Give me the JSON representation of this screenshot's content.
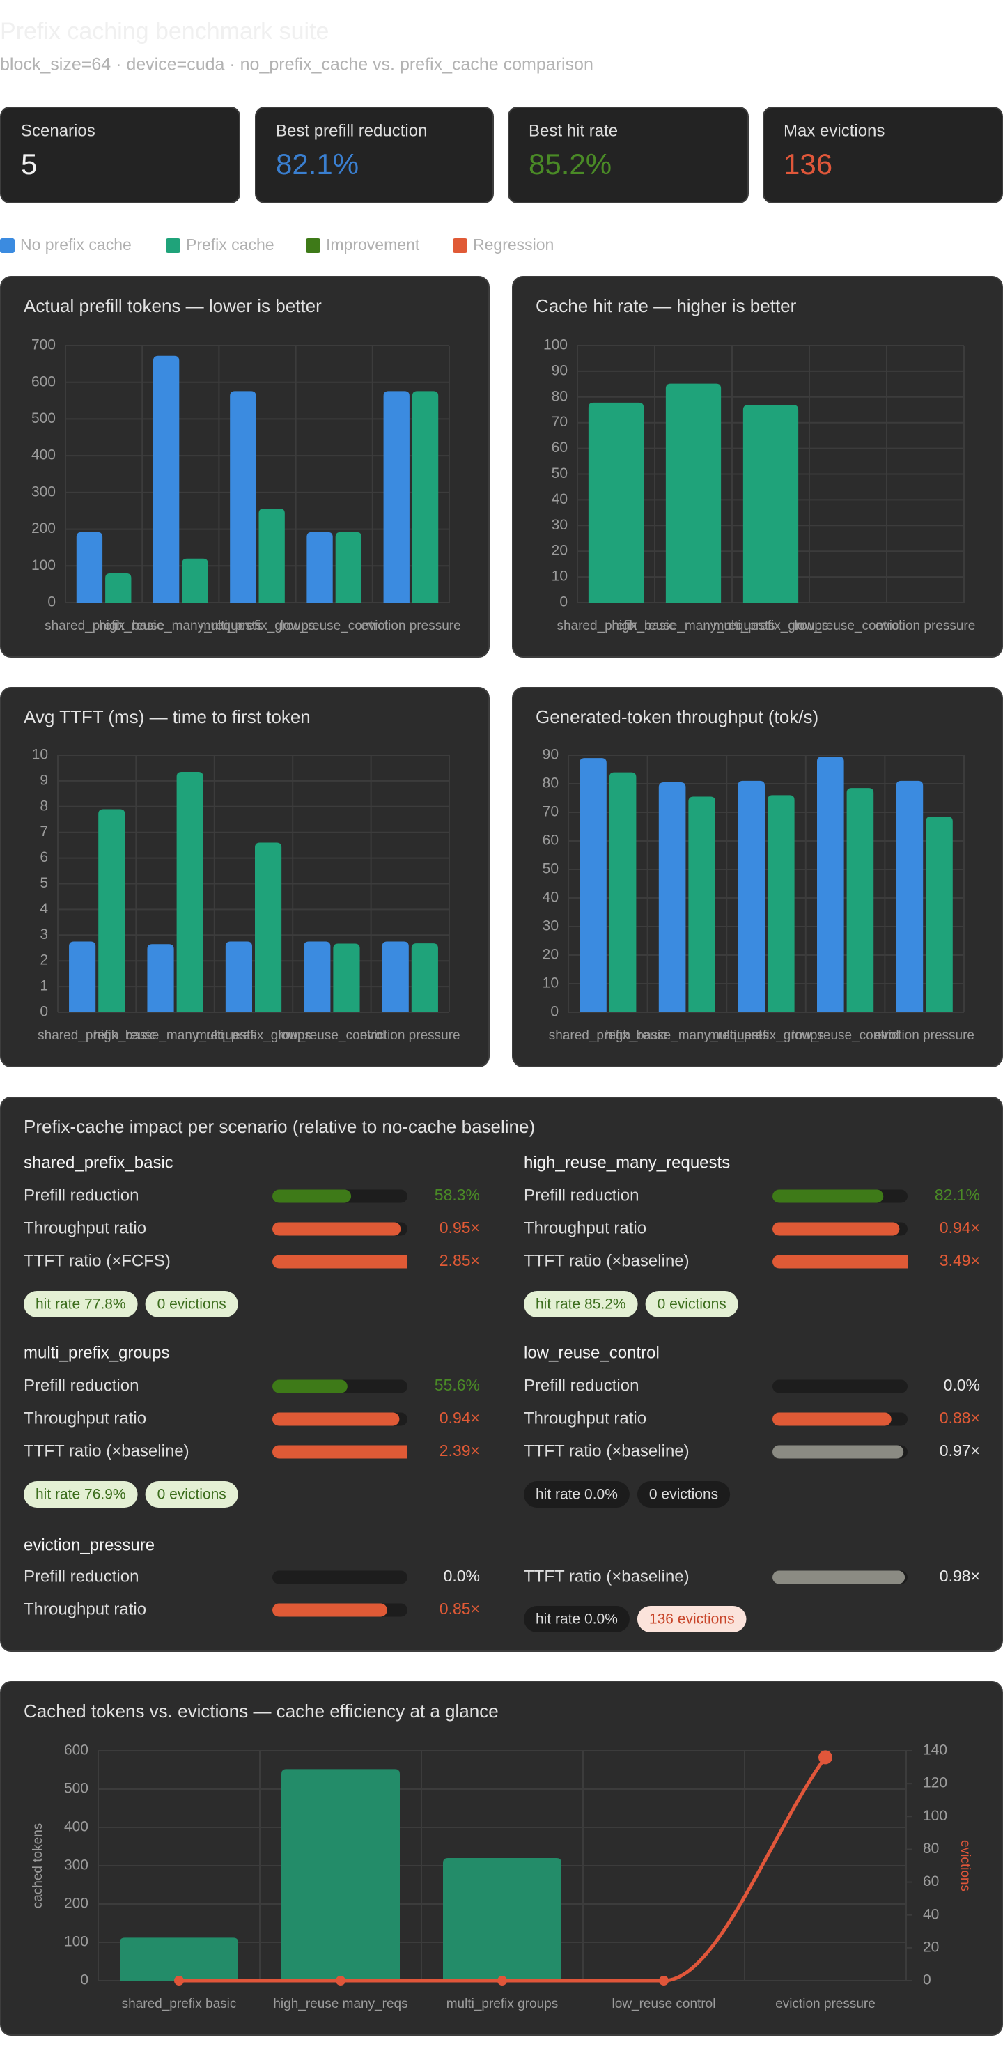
{
  "header": {
    "title": "Prefix caching benchmark suite",
    "subtitle": "block_size=64 · device=cuda · no_prefix_cache vs. prefix_cache comparison"
  },
  "kpis": [
    {
      "label": "Scenarios",
      "value": "5",
      "color": "#f2f2f2"
    },
    {
      "label": "Best prefill reduction",
      "value": "82.1%",
      "color": "#3a7fd0"
    },
    {
      "label": "Best hit rate",
      "value": "85.2%",
      "color": "#4a8a26"
    },
    {
      "label": "Max evictions",
      "value": "136",
      "color": "#e0573a"
    }
  ],
  "legend": [
    {
      "name": "No prefix cache",
      "color": "#3b8be0"
    },
    {
      "name": "Prefix cache",
      "color": "#1fa37a"
    },
    {
      "name": "Improvement",
      "color": "#3e7a18"
    },
    {
      "name": "Regression",
      "color": "#e05a36"
    }
  ],
  "chart_data": [
    {
      "type": "bar",
      "title": "Actual prefill tokens — lower is better",
      "categories": [
        "shared_prefix_basic",
        "high_reuse_many_requests",
        "multi_prefix_groups",
        "low_reuse_control",
        "eviction pressure"
      ],
      "series": [
        {
          "color": "#3b8be0",
          "values": [
            192,
            672,
            576,
            192,
            576
          ]
        },
        {
          "color": "#1fa37a",
          "values": [
            80,
            120,
            256,
            192,
            576
          ]
        }
      ],
      "ylim": [
        0,
        700
      ],
      "yticks": [
        0,
        100,
        200,
        300,
        400,
        500,
        600,
        700
      ],
      "grid": true
    },
    {
      "type": "bar",
      "title": "Cache hit rate — higher is better",
      "categories": [
        "shared_prefix_basic",
        "high_reuse_many_requests",
        "multi_prefix_groups",
        "low_reuse_control",
        "eviction pressure"
      ],
      "series": [
        {
          "color": "#1fa37a",
          "values": [
            77.8,
            85.2,
            76.9,
            0,
            0
          ]
        }
      ],
      "ylim": [
        0,
        100
      ],
      "yticks": [
        0,
        10,
        20,
        30,
        40,
        50,
        60,
        70,
        80,
        90,
        100
      ],
      "grid": true
    },
    {
      "type": "bar",
      "title": "Avg TTFT (ms) — time to first token",
      "categories": [
        "shared_prefix_basic",
        "high_reuse_many_requests",
        "multi_prefix_groups",
        "low_reuse_control",
        "eviction pressure"
      ],
      "series": [
        {
          "color": "#3b8be0",
          "values": [
            2.75,
            2.65,
            2.75,
            2.75,
            2.75
          ]
        },
        {
          "color": "#1fa37a",
          "values": [
            7.9,
            9.35,
            6.6,
            2.67,
            2.68
          ]
        }
      ],
      "ylim": [
        0,
        10
      ],
      "yticks": [
        0,
        1,
        2,
        3,
        4,
        5,
        6,
        7,
        8,
        9,
        10
      ],
      "grid": true
    },
    {
      "type": "bar",
      "title": "Generated-token throughput (tok/s)",
      "categories": [
        "shared_prefix_basic",
        "high_reuse_many_requests",
        "multi_prefix_groups",
        "low_reuse_control",
        "eviction pressure"
      ],
      "series": [
        {
          "color": "#3b8be0",
          "values": [
            89,
            80.5,
            81,
            89.5,
            81
          ]
        },
        {
          "color": "#1fa37a",
          "values": [
            84,
            75.5,
            76,
            78.5,
            68.5
          ]
        }
      ],
      "ylim": [
        0,
        90
      ],
      "yticks": [
        0,
        10,
        20,
        30,
        40,
        50,
        60,
        70,
        80,
        90
      ],
      "grid": true
    },
    {
      "type": "bar-line",
      "title": "Cached tokens vs. evictions — cache efficiency at a glance",
      "categories": [
        "shared_prefix basic",
        "high_reuse many_reqs",
        "multi_prefix groups",
        "low_reuse control",
        "eviction pressure"
      ],
      "ylabel": "cached tokens",
      "y2label": "evictions",
      "series": [
        {
          "type": "bar",
          "color": "#238c69",
          "values": [
            112,
            552,
            320,
            0,
            0
          ]
        },
        {
          "type": "line",
          "axis": "y2",
          "color": "#e0563a",
          "values": [
            0,
            0,
            0,
            0,
            136
          ]
        }
      ],
      "ylim": [
        0,
        600
      ],
      "yticks": [
        0,
        100,
        200,
        300,
        400,
        500,
        600
      ],
      "y2lim": [
        0,
        140
      ],
      "y2ticks": [
        0,
        20,
        40,
        60,
        80,
        100,
        120,
        140
      ],
      "grid": true
    }
  ],
  "impact": {
    "title": "Prefix-cache impact per scenario (relative to no-cache baseline)",
    "scenarios": [
      {
        "name": "shared_prefix_basic",
        "metrics": [
          {
            "label": "Prefill reduction",
            "value": 58.3,
            "value_label": "58.3%",
            "xlim": [
              0,
              100
            ],
            "color": "#3e7a18",
            "text_color": "#4a8a26"
          },
          {
            "label": "Throughput ratio",
            "value": 0.95,
            "value_label": "0.95×",
            "xlim": [
              0,
              1
            ],
            "color": "#e05a36",
            "text_color": "#e05a36"
          },
          {
            "label": "TTFT ratio (×FCFS)",
            "value": 2.85,
            "value_label": "2.85×",
            "xlim": [
              0,
              1
            ],
            "color": "#e05a36",
            "text_color": "#e05a36"
          }
        ],
        "badges": [
          {
            "text": "hit rate 77.8%",
            "background": "#e4f0d4",
            "color": "#3b6d1c"
          },
          {
            "text": "0 evictions",
            "background": "#e4f0d4",
            "color": "#3b6d1c"
          }
        ]
      },
      {
        "name": "high_reuse_many_requests",
        "metrics": [
          {
            "label": "Prefill reduction",
            "value": 82.1,
            "value_label": "82.1%",
            "xlim": [
              0,
              100
            ],
            "color": "#3e7a18",
            "text_color": "#4a8a26"
          },
          {
            "label": "Throughput ratio",
            "value": 0.94,
            "value_label": "0.94×",
            "xlim": [
              0,
              1
            ],
            "color": "#e05a36",
            "text_color": "#e05a36"
          },
          {
            "label": "TTFT ratio (×baseline)",
            "value": 3.49,
            "value_label": "3.49×",
            "xlim": [
              0,
              1
            ],
            "color": "#e05a36",
            "text_color": "#e05a36"
          }
        ],
        "badges": [
          {
            "text": "hit rate 85.2%",
            "background": "#e4f0d4",
            "color": "#3b6d1c"
          },
          {
            "text": "0 evictions",
            "background": "#e4f0d4",
            "color": "#3b6d1c"
          }
        ]
      },
      {
        "name": "multi_prefix_groups",
        "metrics": [
          {
            "label": "Prefill reduction",
            "value": 55.6,
            "value_label": "55.6%",
            "xlim": [
              0,
              100
            ],
            "color": "#3e7a18",
            "text_color": "#4a8a26"
          },
          {
            "label": "Throughput ratio",
            "value": 0.94,
            "value_label": "0.94×",
            "xlim": [
              0,
              1
            ],
            "color": "#e05a36",
            "text_color": "#e05a36"
          },
          {
            "label": "TTFT ratio (×baseline)",
            "value": 2.39,
            "value_label": "2.39×",
            "xlim": [
              0,
              1
            ],
            "color": "#e05a36",
            "text_color": "#e05a36"
          }
        ],
        "badges": [
          {
            "text": "hit rate 76.9%",
            "background": "#e4f0d4",
            "color": "#3b6d1c"
          },
          {
            "text": "0 evictions",
            "background": "#e4f0d4",
            "color": "#3b6d1c"
          }
        ]
      },
      {
        "name": "low_reuse_control",
        "metrics": [
          {
            "label": "Prefill reduction",
            "value": 0,
            "value_label": "0.0%",
            "xlim": [
              0,
              100
            ],
            "color": "#8b8b83",
            "text_color": "#e8e8e8"
          },
          {
            "label": "Throughput ratio",
            "value": 0.88,
            "value_label": "0.88×",
            "xlim": [
              0,
              1
            ],
            "color": "#e05a36",
            "text_color": "#e05a36"
          },
          {
            "label": "TTFT ratio (×baseline)",
            "value": 0.97,
            "value_label": "0.97×",
            "xlim": [
              0,
              1
            ],
            "color": "#8b8b83",
            "text_color": "#e8e8e8"
          }
        ],
        "badges": [
          {
            "text": "hit rate 0.0%",
            "background": "#1c1c1c",
            "color": "#dddddd"
          },
          {
            "text": "0 evictions",
            "background": "#1c1c1c",
            "color": "#dddddd"
          }
        ]
      },
      {
        "name": "eviction_pressure",
        "metrics": [
          {
            "label": "Prefill reduction",
            "value": 0,
            "value_label": "0.0%",
            "xlim": [
              0,
              100
            ],
            "color": "#8b8b83",
            "text_color": "#e8e8e8"
          },
          {
            "label": "Throughput ratio",
            "value": 0.85,
            "value_label": "0.85×",
            "xlim": [
              0,
              1
            ],
            "color": "#e05a36",
            "text_color": "#e05a36"
          },
          {
            "label": "TTFT ratio (×baseline)",
            "value": 0.98,
            "value_label": "0.98×",
            "xlim": [
              0,
              1
            ],
            "color": "#8b8b83",
            "text_color": "#e8e8e8"
          }
        ],
        "badges": [
          {
            "text": "hit rate 0.0%",
            "background": "#1c1c1c",
            "color": "#dddddd"
          },
          {
            "text": "136 evictions",
            "background": "#fbe3db",
            "color": "#c8452a"
          }
        ]
      }
    ]
  }
}
